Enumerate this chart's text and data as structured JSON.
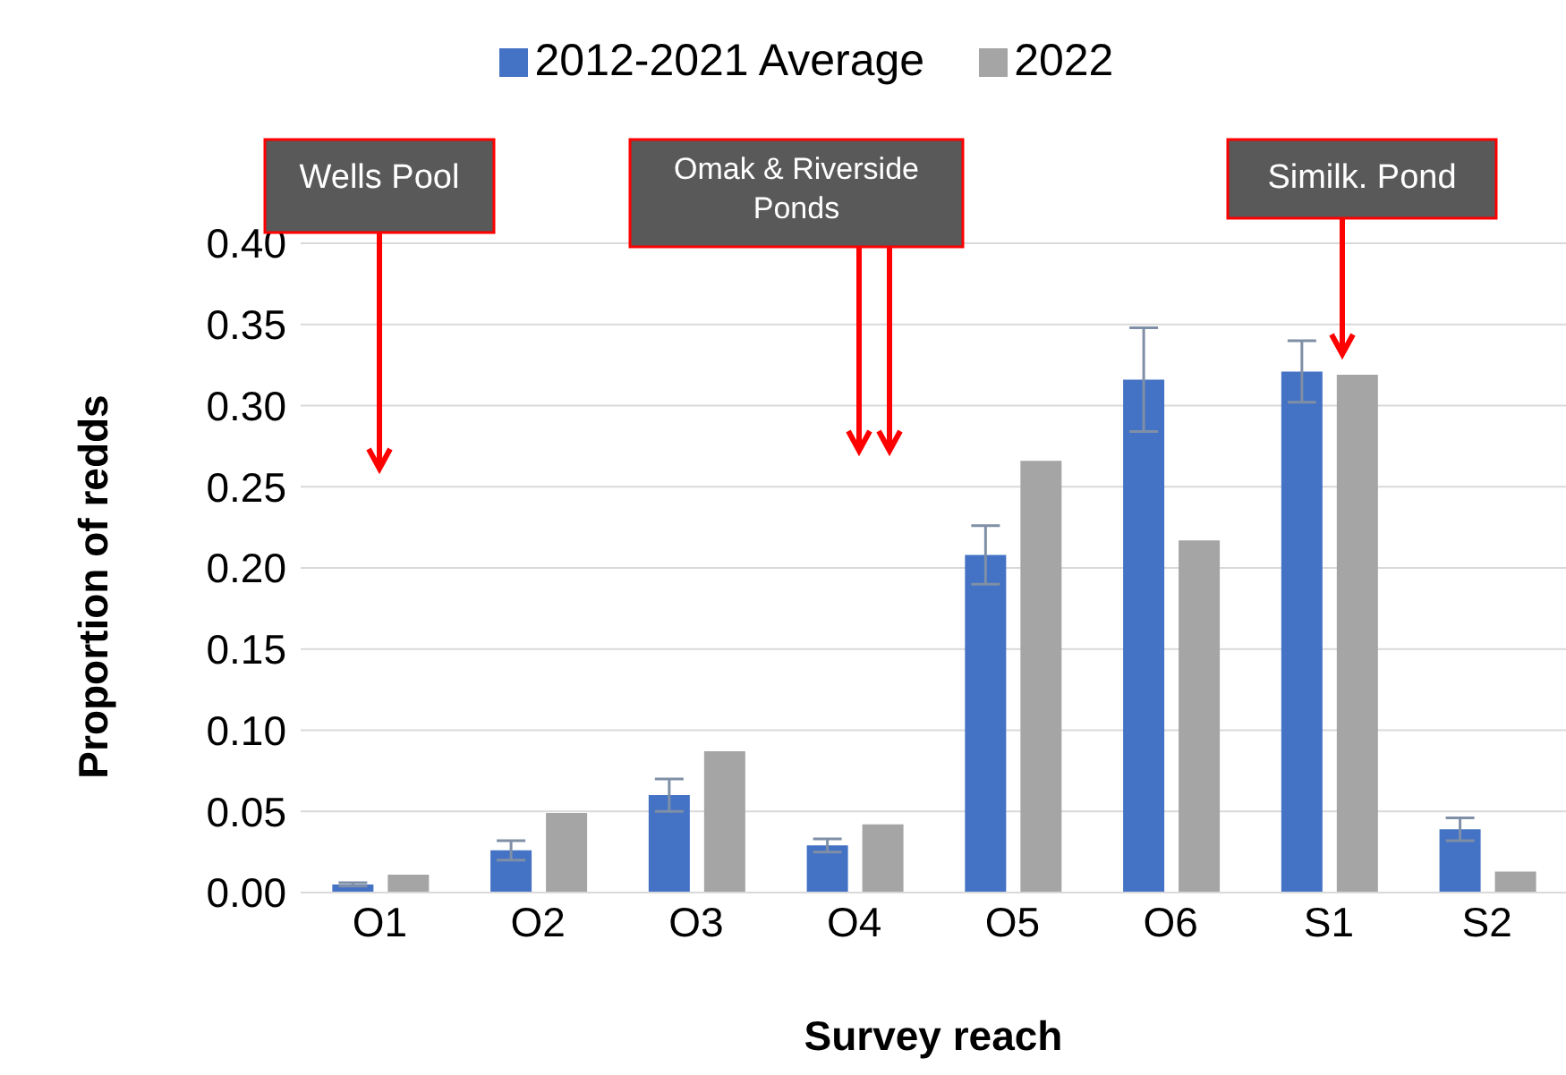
{
  "chart_data": {
    "type": "bar",
    "xlabel": "Survey reach",
    "ylabel": "Proportion of redds",
    "categories": [
      "O1",
      "O2",
      "O3",
      "O4",
      "O5",
      "O6",
      "S1",
      "S2"
    ],
    "series": [
      {
        "name": "2012-2021 Average",
        "color": "#4472c4",
        "values": [
          0.005,
          0.026,
          0.06,
          0.029,
          0.208,
          0.316,
          0.321,
          0.039
        ],
        "errors": [
          0.001,
          0.006,
          0.01,
          0.004,
          0.018,
          0.032,
          0.019,
          0.007
        ]
      },
      {
        "name": "2022",
        "color": "#a5a5a5",
        "values": [
          0.011,
          0.049,
          0.087,
          0.042,
          0.266,
          0.217,
          0.319,
          0.013
        ]
      }
    ],
    "ylim": [
      0,
      0.4
    ],
    "yticks": [
      {
        "value": 0,
        "label": "0.00"
      },
      {
        "value": 0.05,
        "label": "0.05"
      },
      {
        "value": 0.1,
        "label": "0.10"
      },
      {
        "value": 0.15,
        "label": "0.15"
      },
      {
        "value": 0.2,
        "label": "0.20"
      },
      {
        "value": 0.25,
        "label": "0.25"
      },
      {
        "value": 0.3,
        "label": "0.30"
      },
      {
        "value": 0.35,
        "label": "0.35"
      },
      {
        "value": 0.4,
        "label": "0.40"
      }
    ],
    "grid": "y",
    "legend": "top",
    "annotations": [
      "Wells Pool",
      "Omak & Riverside Ponds",
      "Similk. Pond"
    ]
  }
}
